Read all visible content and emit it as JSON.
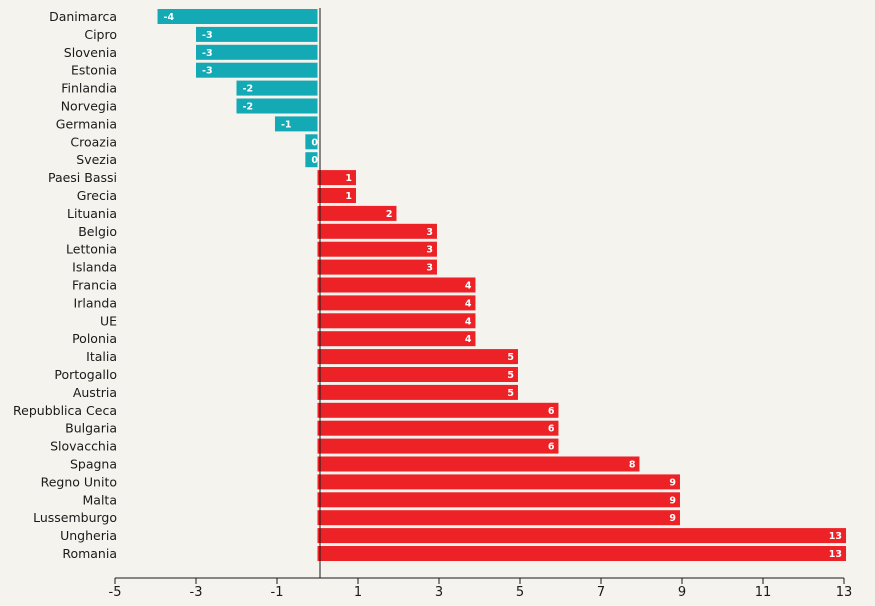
{
  "chart_data": {
    "type": "bar",
    "orientation": "horizontal",
    "categories": [
      "Danimarca",
      "Cipro",
      "Slovenia",
      "Estonia",
      "Finlandia",
      "Norvegia",
      "Germania",
      "Croazia",
      "Svezia",
      "Paesi Bassi",
      "Grecia",
      "Lituania",
      "Belgio",
      "Lettonia",
      "Islanda",
      "Francia",
      "Irlanda",
      "UE",
      "Polonia",
      "Italia",
      "Portogallo",
      "Austria",
      "Repubblica Ceca",
      "Bulgaria",
      "Slovacchia",
      "Spagna",
      "Regno Unito",
      "Malta",
      "Lussemburgo",
      "Ungheria",
      "Romania"
    ],
    "values": [
      -4,
      -3,
      -3,
      -3,
      -2,
      -2,
      -1,
      0,
      0,
      1,
      1,
      2,
      3,
      3,
      3,
      4,
      4,
      4,
      4,
      5,
      5,
      5,
      6,
      6,
      6,
      8,
      9,
      9,
      9,
      13,
      13
    ],
    "value_labels": [
      "-4",
      "-3",
      "-3",
      "-3",
      "-2",
      "-2",
      "-1",
      "0",
      "0",
      "1",
      "1",
      "2",
      "3",
      "3",
      "3",
      "4",
      "4",
      "4",
      "4",
      "5",
      "5",
      "5",
      "6",
      "6",
      "6",
      "8",
      "9",
      "9",
      "9",
      "13",
      "13"
    ],
    "bar_start_values": [
      -3.95,
      -3.0,
      -3.0,
      -3.0,
      -2.0,
      -2.0,
      -1.05,
      -0.3,
      -0.3,
      0,
      0,
      0,
      0,
      0,
      0,
      0,
      0,
      0,
      0,
      0,
      0,
      0,
      0,
      0,
      0,
      0,
      0,
      0,
      0,
      0,
      0
    ],
    "bar_end_values": [
      0,
      0,
      0,
      0,
      0,
      0,
      0,
      0,
      0,
      0.95,
      0.95,
      1.95,
      2.95,
      2.95,
      2.95,
      3.9,
      3.9,
      3.9,
      3.9,
      4.95,
      4.95,
      4.95,
      5.95,
      5.95,
      5.95,
      7.95,
      8.95,
      8.95,
      8.95,
      13.05,
      13.05
    ],
    "xlim": [
      -5,
      13
    ],
    "xticks": [
      "-5",
      "-3",
      "-1",
      "1",
      "3",
      "5",
      "7",
      "9",
      "11",
      "13"
    ],
    "xtick_values": [
      -5,
      -3,
      -1,
      1,
      3,
      5,
      7,
      9,
      11,
      13
    ],
    "title": "",
    "xlabel": "",
    "ylabel": "",
    "grid": false,
    "legend": false,
    "colors": {
      "negative": "#13aab5",
      "positive": "#ec2227",
      "background": "#f5f3ee",
      "axis": "#1a1a1a"
    }
  }
}
